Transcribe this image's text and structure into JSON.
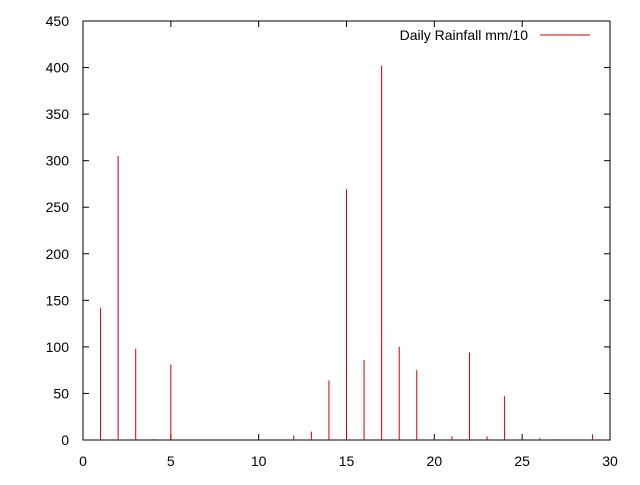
{
  "chart_data": {
    "type": "bar",
    "style": "impulses",
    "series": [
      {
        "name": "Daily Rainfall mm/10",
        "color": "#cc0000",
        "points": [
          {
            "x": 1,
            "y": 142
          },
          {
            "x": 2,
            "y": 305
          },
          {
            "x": 3,
            "y": 98
          },
          {
            "x": 4,
            "y": 1
          },
          {
            "x": 5,
            "y": 81
          },
          {
            "x": 12,
            "y": 5
          },
          {
            "x": 13,
            "y": 9
          },
          {
            "x": 14,
            "y": 64
          },
          {
            "x": 15,
            "y": 269
          },
          {
            "x": 16,
            "y": 86
          },
          {
            "x": 17,
            "y": 402
          },
          {
            "x": 18,
            "y": 100
          },
          {
            "x": 19,
            "y": 75
          },
          {
            "x": 20,
            "y": 3
          },
          {
            "x": 21,
            "y": 4
          },
          {
            "x": 22,
            "y": 94
          },
          {
            "x": 23,
            "y": 4
          },
          {
            "x": 24,
            "y": 47
          },
          {
            "x": 25,
            "y": 2
          },
          {
            "x": 26,
            "y": 2
          },
          {
            "x": 27,
            "y": 1
          },
          {
            "x": 29,
            "y": 6
          }
        ]
      }
    ],
    "xlim": [
      0,
      30
    ],
    "ylim": [
      0,
      450
    ],
    "xticks": [
      0,
      5,
      10,
      15,
      20,
      25,
      30
    ],
    "yticks": [
      0,
      50,
      100,
      150,
      200,
      250,
      300,
      350,
      400,
      450
    ],
    "xlabel": "",
    "ylabel": "",
    "title": "",
    "grid": false,
    "legend_position": "top-right",
    "axis_color": "#000000"
  }
}
